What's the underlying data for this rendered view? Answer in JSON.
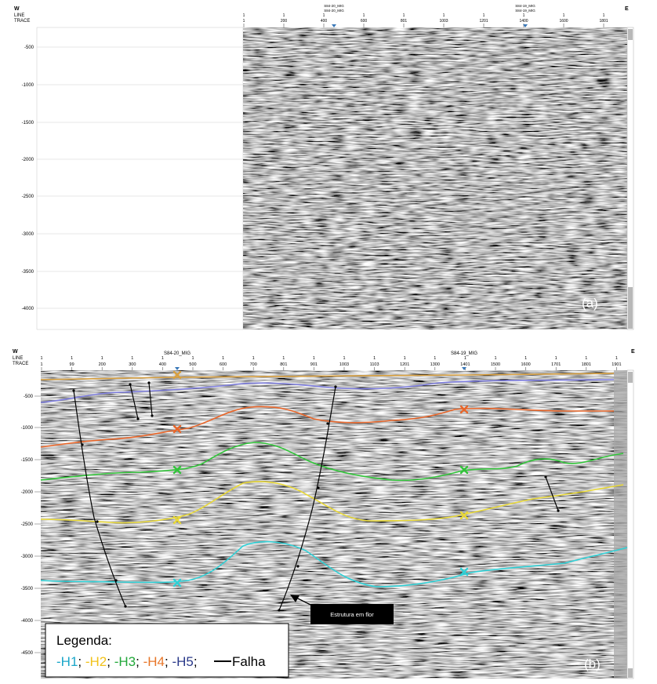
{
  "panels": [
    {
      "id": "a",
      "corner_label": "(a)",
      "side_west": "W",
      "side_east": "E",
      "axis_row_labels": [
        "LINE",
        "TRACE"
      ],
      "line_ticks": [
        "1",
        "1",
        "1",
        "1",
        "1",
        "1",
        "1",
        "1",
        "1",
        "1",
        "1"
      ],
      "trace_ticks": [
        "1",
        "200",
        "400",
        "600",
        "801",
        "1003",
        "1201",
        "1400",
        "1600",
        "1801"
      ],
      "depth_ticks": [
        "-500",
        "-1000",
        "-1500",
        "-2000",
        "-2500",
        "-3000",
        "-3500",
        "-4000"
      ],
      "tie_markers": [
        {
          "label_top": "S84-20_MIG",
          "label_bottom": "S84-20_MIG"
        },
        {
          "label_top": "S84-19_MIG",
          "label_bottom": "S84-19_MIG"
        }
      ]
    },
    {
      "id": "b",
      "corner_label": "(b)",
      "side_west": "W",
      "side_east": "E",
      "axis_row_labels": [
        "LINE",
        "TRACE"
      ],
      "line_ticks": [
        "1",
        "1",
        "1",
        "1",
        "1",
        "1",
        "1",
        "1",
        "1",
        "1",
        "1",
        "1",
        "1",
        "1",
        "1",
        "1",
        "1",
        "1",
        "1",
        "1"
      ],
      "trace_ticks": [
        "1",
        "99",
        "200",
        "300",
        "400",
        "500",
        "600",
        "700",
        "801",
        "901",
        "1003",
        "1103",
        "1201",
        "1300",
        "1401",
        "1500",
        "1600",
        "1701",
        "1801",
        "1901"
      ],
      "depth_ticks": [
        "-500",
        "-1000",
        "-1500",
        "-2000",
        "-2500",
        "-3000",
        "-3500",
        "-4000",
        "-4500"
      ],
      "tie_markers": [
        {
          "label": "S84-20_MIG"
        },
        {
          "label": "S84-19_MIG"
        }
      ],
      "annotation": "Estrutura em flor",
      "legend": {
        "title": "Legenda:",
        "items": [
          {
            "label": "-H1",
            "color": "#1aa6c9"
          },
          {
            "label": "-H2",
            "color": "#f2c21a"
          },
          {
            "label": "-H3",
            "color": "#22a83a"
          },
          {
            "label": "-H4",
            "color": "#e8772a"
          },
          {
            "label": "-H5",
            "color": "#2a3a8a"
          },
          {
            "label": "Falha",
            "color": "#000000"
          }
        ]
      },
      "horizons": [
        {
          "name": "H1",
          "color": "#2fd0d6"
        },
        {
          "name": "H2",
          "color": "#e8d838"
        },
        {
          "name": "H3",
          "color": "#32c43a"
        },
        {
          "name": "H4",
          "color": "#e8662a"
        },
        {
          "name": "H5",
          "color": "#7f7fe0"
        },
        {
          "name": "seabed",
          "color": "#d8a040"
        }
      ]
    }
  ],
  "colors": {
    "seismic_bg": "#8c8c8c",
    "grid": "#c8c8c8",
    "scroll": "#b8b8b8",
    "tie_marker": "#3a78b8"
  }
}
